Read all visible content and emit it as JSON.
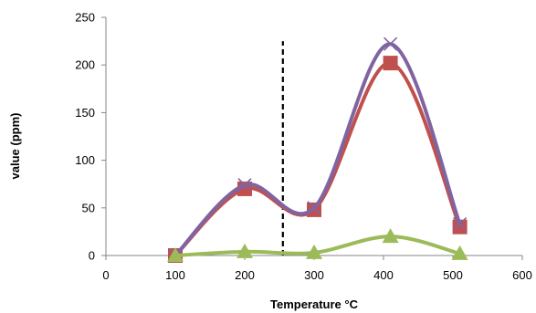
{
  "chart_data": {
    "type": "line",
    "title": "",
    "xlabel": "Temperature °C",
    "ylabel": "value (ppm)",
    "xlim": [
      0,
      600
    ],
    "ylim": [
      0,
      250
    ],
    "xticks": [
      0,
      100,
      200,
      300,
      400,
      500,
      600
    ],
    "yticks": [
      0,
      50,
      100,
      150,
      200,
      250
    ],
    "grid": false,
    "legend": "none",
    "smooth": true,
    "series": [
      {
        "color": "#c0504d",
        "marker": "square",
        "x": [
          100,
          200,
          300,
          410,
          510
        ],
        "values": [
          0,
          70,
          48,
          202,
          30
        ]
      },
      {
        "color": "#8064a2",
        "marker": "x",
        "x": [
          100,
          200,
          300,
          410,
          510
        ],
        "values": [
          0,
          74,
          50,
          222,
          33
        ]
      },
      {
        "color": "#9bbb59",
        "marker": "triangle",
        "x": [
          100,
          200,
          300,
          410,
          510
        ],
        "values": [
          0,
          4,
          3,
          20,
          2
        ]
      }
    ],
    "annotations": [
      {
        "type": "vline",
        "x": 255,
        "y_range": [
          0,
          225
        ],
        "style": "dashed",
        "color": "#000000"
      }
    ]
  }
}
